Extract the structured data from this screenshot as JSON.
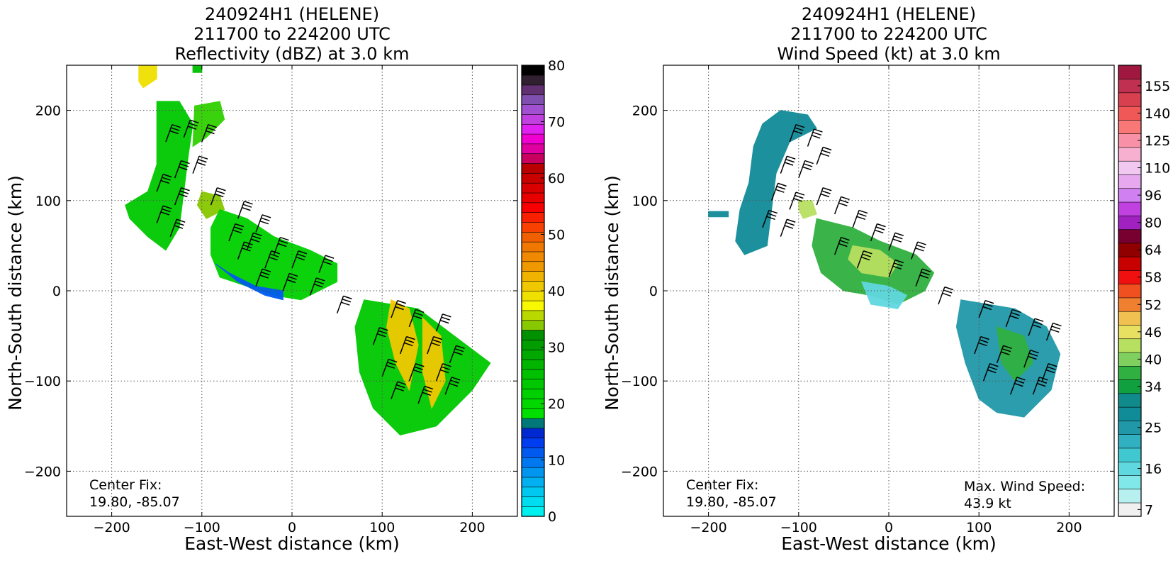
{
  "panels": [
    {
      "title_lines": [
        "240924H1 (HELENE)",
        "211700 to 224200 UTC",
        "Reflectivity (dBZ) at 3.0 km"
      ],
      "xlabel": "East-West distance (km)",
      "ylabel": "North-South distance (km)",
      "center_fix_label": "Center Fix:",
      "center_fix_value": "19.80, -85.07",
      "max_label": "",
      "max_value": ""
    },
    {
      "title_lines": [
        "240924H1 (HELENE)",
        "211700 to 224200 UTC",
        "Wind Speed (kt) at 3.0 km"
      ],
      "xlabel": "East-West distance (km)",
      "ylabel": "North-South distance (km)",
      "center_fix_label": "Center Fix:",
      "center_fix_value": "19.80, -85.07",
      "max_label": "Max. Wind Speed:",
      "max_value": "43.9 kt"
    }
  ],
  "chart_data": [
    {
      "type": "heatmap",
      "title": "240924H1 (HELENE) 211700 to 224200 UTC Reflectivity (dBZ) at 3.0 km",
      "xlabel": "East-West distance (km)",
      "ylabel": "North-South distance (km)",
      "xlim": [
        -250,
        250
      ],
      "ylim": [
        -250,
        250
      ],
      "xticks": [
        -200,
        -100,
        0,
        100,
        200
      ],
      "yticks": [
        -200,
        -100,
        0,
        100,
        200
      ],
      "grid": true,
      "colorbar": {
        "min": 0,
        "max": 80,
        "step": 2.5,
        "ticks": [
          0,
          10,
          20,
          30,
          40,
          50,
          60,
          70,
          80
        ],
        "colors": [
          "#00f0f0",
          "#00dcf0",
          "#00c8f0",
          "#00b0f0",
          "#0096f0",
          "#0078f0",
          "#005af0",
          "#003cf0",
          "#0028d0",
          "#00787a",
          "#00e000",
          "#00d800",
          "#00d000",
          "#00c800",
          "#00c000",
          "#00b400",
          "#00a800",
          "#009c00",
          "#009000",
          "#88c800",
          "#b8d800",
          "#f8f800",
          "#f0e000",
          "#f0c800",
          "#f0b400",
          "#f09800",
          "#f08800",
          "#f07800",
          "#f06000",
          "#f84000",
          "#f82000",
          "#f80000",
          "#e80000",
          "#d80000",
          "#c80000",
          "#b80000",
          "#c80060",
          "#e000a0",
          "#f000d0",
          "#e020f0",
          "#c040e0",
          "#a050d0",
          "#8050b0",
          "#603070",
          "#302030",
          "#000000"
        ]
      },
      "regions": [
        {
          "name": "NW band",
          "points": [
            [
              -150,
              210
            ],
            [
              -125,
              210
            ],
            [
              -110,
              185
            ],
            [
              -115,
              150
            ],
            [
              -120,
              110
            ],
            [
              -125,
              70
            ],
            [
              -140,
              45
            ],
            [
              -160,
              60
            ],
            [
              -180,
              80
            ],
            [
              -185,
              95
            ],
            [
              -160,
              110
            ],
            [
              -150,
              140
            ],
            [
              -150,
              175
            ]
          ],
          "fill": "#00c800"
        },
        {
          "name": "NW outer",
          "points": [
            [
              -108,
              205
            ],
            [
              -80,
              210
            ],
            [
              -75,
              190
            ],
            [
              -95,
              170
            ],
            [
              -110,
              160
            ]
          ],
          "fill": "#30d000"
        },
        {
          "name": "N fragment",
          "points": [
            [
              -170,
              250
            ],
            [
              -150,
              250
            ],
            [
              -150,
              235
            ],
            [
              -165,
              225
            ],
            [
              -170,
              232
            ]
          ],
          "fill": "#f0e000"
        },
        {
          "name": "N small",
          "points": [
            [
              -110,
              250
            ],
            [
              -100,
              250
            ],
            [
              -100,
              242
            ],
            [
              -110,
              242
            ]
          ],
          "fill": "#00c000"
        },
        {
          "name": "mid left",
          "points": [
            [
              -100,
              110
            ],
            [
              -80,
              105
            ],
            [
              -75,
              90
            ],
            [
              -95,
              80
            ],
            [
              -105,
              95
            ]
          ],
          "fill": "#88c800"
        },
        {
          "name": "central band",
          "points": [
            [
              -80,
              90
            ],
            [
              -50,
              80
            ],
            [
              -20,
              60
            ],
            [
              20,
              45
            ],
            [
              50,
              30
            ],
            [
              50,
              10
            ],
            [
              30,
              0
            ],
            [
              10,
              -10
            ],
            [
              -20,
              -5
            ],
            [
              -50,
              5
            ],
            [
              -80,
              15
            ],
            [
              -90,
              40
            ],
            [
              -90,
              70
            ]
          ],
          "fill": "#00d000"
        },
        {
          "name": "central blue",
          "points": [
            [
              -85,
              30
            ],
            [
              -60,
              10
            ],
            [
              -30,
              -5
            ],
            [
              -10,
              -10
            ],
            [
              -10,
              0
            ],
            [
              -40,
              5
            ],
            [
              -70,
              20
            ]
          ],
          "fill": "#005af0"
        },
        {
          "name": "S band",
          "points": [
            [
              80,
              -10
            ],
            [
              140,
              -20
            ],
            [
              180,
              -50
            ],
            [
              220,
              -80
            ],
            [
              200,
              -110
            ],
            [
              160,
              -150
            ],
            [
              120,
              -160
            ],
            [
              90,
              -130
            ],
            [
              75,
              -90
            ],
            [
              70,
              -40
            ]
          ],
          "fill": "#00c800"
        },
        {
          "name": "S core",
          "points": [
            [
              110,
              -10
            ],
            [
              130,
              -20
            ],
            [
              140,
              -60
            ],
            [
              130,
              -110
            ],
            [
              115,
              -80
            ],
            [
              105,
              -40
            ]
          ],
          "fill": "#f0c800"
        },
        {
          "name": "S core 2",
          "points": [
            [
              145,
              -30
            ],
            [
              165,
              -50
            ],
            [
              170,
              -100
            ],
            [
              155,
              -130
            ],
            [
              145,
              -90
            ]
          ],
          "fill": "#f0c800"
        }
      ],
      "barbs": [
        [
          -140,
          165
        ],
        [
          -120,
          170
        ],
        [
          -100,
          165
        ],
        [
          -130,
          125
        ],
        [
          -110,
          130
        ],
        [
          -150,
          110
        ],
        [
          -130,
          95
        ],
        [
          -150,
          75
        ],
        [
          -135,
          60
        ],
        [
          -90,
          95
        ],
        [
          -60,
          80
        ],
        [
          -40,
          65
        ],
        [
          -70,
          55
        ],
        [
          -50,
          45
        ],
        [
          -20,
          40
        ],
        [
          -60,
          35
        ],
        [
          -30,
          25
        ],
        [
          0,
          25
        ],
        [
          30,
          20
        ],
        [
          -40,
          5
        ],
        [
          -10,
          0
        ],
        [
          20,
          -5
        ],
        [
          50,
          -25
        ],
        [
          110,
          -30
        ],
        [
          130,
          -40
        ],
        [
          160,
          -45
        ],
        [
          90,
          -60
        ],
        [
          120,
          -70
        ],
        [
          150,
          -70
        ],
        [
          175,
          -80
        ],
        [
          100,
          -95
        ],
        [
          130,
          -100
        ],
        [
          160,
          -100
        ],
        [
          110,
          -120
        ],
        [
          140,
          -125
        ],
        [
          170,
          -115
        ]
      ]
    },
    {
      "type": "heatmap",
      "title": "240924H1 (HELENE) 211700 to 224200 UTC Wind Speed (kt) at 3.0 km",
      "xlabel": "East-West distance (km)",
      "ylabel": "North-South distance (km)",
      "xlim": [
        -250,
        250
      ],
      "ylim": [
        -250,
        250
      ],
      "xticks": [
        -200,
        -100,
        0,
        100,
        200
      ],
      "yticks": [
        -200,
        -100,
        0,
        100,
        200
      ],
      "grid": true,
      "max_wind_speed_kt": 43.9,
      "colorbar": {
        "levels": [
          7,
          10,
          13,
          16,
          19,
          22,
          25,
          28,
          31,
          34,
          37,
          40,
          43,
          46,
          49,
          52,
          55,
          58,
          61,
          64,
          72,
          80,
          88,
          96,
          103,
          110,
          118,
          125,
          133,
          140,
          148,
          155,
          162
        ],
        "ticks": [
          7,
          16,
          25,
          34,
          40,
          46,
          52,
          58,
          64,
          80,
          96,
          110,
          125,
          140,
          155
        ],
        "colors": [
          "#f0f0f0",
          "#b8f0f0",
          "#80e8e8",
          "#60d8e0",
          "#40c8d0",
          "#30b0c0",
          "#2098a8",
          "#108c98",
          "#108a8a",
          "#10a040",
          "#30b040",
          "#80d060",
          "#b8e060",
          "#e8e060",
          "#f0c050",
          "#f08030",
          "#f05020",
          "#f01010",
          "#c80000",
          "#900000",
          "#780030",
          "#a020c0",
          "#c040e0",
          "#d080f0",
          "#e8a8f0",
          "#f0c8f0",
          "#f8b0d0",
          "#f890a8",
          "#f87878",
          "#f05858",
          "#d84050",
          "#c03050",
          "#a01840"
        ]
      },
      "regions": [
        {
          "name": "NW band",
          "points": [
            [
              -120,
              200
            ],
            [
              -90,
              195
            ],
            [
              -80,
              180
            ],
            [
              -110,
              165
            ],
            [
              -125,
              130
            ],
            [
              -130,
              90
            ],
            [
              -135,
              50
            ],
            [
              -160,
              40
            ],
            [
              -170,
              55
            ],
            [
              -165,
              90
            ],
            [
              -155,
              120
            ],
            [
              -150,
              160
            ],
            [
              -140,
              185
            ]
          ],
          "fill": "#108c98"
        },
        {
          "name": "W fragment",
          "points": [
            [
              -200,
              88
            ],
            [
              -178,
              88
            ],
            [
              -178,
              82
            ],
            [
              -200,
              82
            ]
          ],
          "fill": "#108c98"
        },
        {
          "name": "mid light",
          "points": [
            [
              -100,
              100
            ],
            [
              -85,
              100
            ],
            [
              -80,
              85
            ],
            [
              -95,
              80
            ],
            [
              -100,
              90
            ]
          ],
          "fill": "#b8e060"
        },
        {
          "name": "central band",
          "points": [
            [
              -80,
              80
            ],
            [
              -40,
              70
            ],
            [
              -10,
              55
            ],
            [
              30,
              40
            ],
            [
              50,
              20
            ],
            [
              40,
              0
            ],
            [
              10,
              -15
            ],
            [
              -20,
              -5
            ],
            [
              -50,
              0
            ],
            [
              -75,
              20
            ],
            [
              -85,
              50
            ]
          ],
          "fill": "#30b040"
        },
        {
          "name": "central light",
          "points": [
            [
              -40,
              50
            ],
            [
              -10,
              45
            ],
            [
              10,
              30
            ],
            [
              0,
              15
            ],
            [
              -30,
              20
            ],
            [
              -45,
              35
            ]
          ],
          "fill": "#b8e060"
        },
        {
          "name": "central cyan",
          "points": [
            [
              -30,
              10
            ],
            [
              0,
              5
            ],
            [
              20,
              -5
            ],
            [
              10,
              -20
            ],
            [
              -20,
              -15
            ]
          ],
          "fill": "#60d8e0"
        },
        {
          "name": "S band",
          "points": [
            [
              80,
              -10
            ],
            [
              140,
              -20
            ],
            [
              175,
              -40
            ],
            [
              190,
              -70
            ],
            [
              180,
              -110
            ],
            [
              150,
              -140
            ],
            [
              120,
              -135
            ],
            [
              100,
              -120
            ],
            [
              85,
              -80
            ],
            [
              75,
              -40
            ]
          ],
          "fill": "#2098a8"
        },
        {
          "name": "S green",
          "points": [
            [
              120,
              -40
            ],
            [
              150,
              -50
            ],
            [
              160,
              -80
            ],
            [
              140,
              -100
            ],
            [
              125,
              -80
            ]
          ],
          "fill": "#30b040"
        }
      ],
      "barbs": [
        [
          -110,
          165
        ],
        [
          -90,
          160
        ],
        [
          -80,
          140
        ],
        [
          -120,
          130
        ],
        [
          -100,
          125
        ],
        [
          -130,
          100
        ],
        [
          -110,
          90
        ],
        [
          -140,
          70
        ],
        [
          -120,
          60
        ],
        [
          -80,
          95
        ],
        [
          -60,
          85
        ],
        [
          -40,
          70
        ],
        [
          -20,
          55
        ],
        [
          0,
          45
        ],
        [
          25,
          35
        ],
        [
          -60,
          40
        ],
        [
          -35,
          25
        ],
        [
          0,
          15
        ],
        [
          30,
          5
        ],
        [
          55,
          -15
        ],
        [
          100,
          -30
        ],
        [
          130,
          -40
        ],
        [
          155,
          -50
        ],
        [
          175,
          -55
        ],
        [
          95,
          -70
        ],
        [
          120,
          -80
        ],
        [
          150,
          -85
        ],
        [
          170,
          -100
        ],
        [
          105,
          -100
        ],
        [
          135,
          -115
        ],
        [
          160,
          -115
        ]
      ]
    }
  ]
}
